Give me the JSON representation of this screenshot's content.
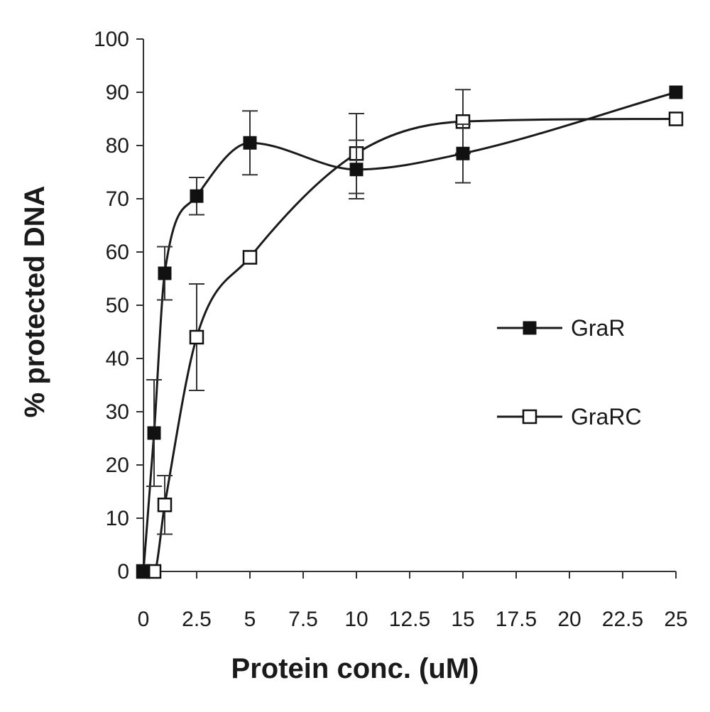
{
  "chart_data": {
    "type": "line",
    "title": "",
    "xlabel": "Protein conc. (uM)",
    "ylabel": "% protected DNA",
    "xlim": [
      0,
      25
    ],
    "ylim": [
      0,
      100
    ],
    "x_ticks": [
      0,
      2.5,
      5,
      7.5,
      10,
      12.5,
      15,
      17.5,
      20,
      22.5,
      25
    ],
    "x_tick_labels": [
      "0",
      "2.5",
      "5",
      "7.5",
      "10",
      "12.5",
      "15",
      "17.5",
      "20",
      "22.5",
      "25"
    ],
    "y_ticks": [
      0,
      10,
      20,
      30,
      40,
      50,
      60,
      70,
      80,
      90,
      100
    ],
    "y_tick_labels": [
      "0",
      "10",
      "20",
      "30",
      "40",
      "50",
      "60",
      "70",
      "80",
      "90",
      "100"
    ],
    "grid": false,
    "legend_position": "right",
    "series": [
      {
        "name": "GraR",
        "marker": "filled-square",
        "x": [
          0,
          0.5,
          1,
          2.5,
          5,
          10,
          15,
          25
        ],
        "y": [
          0,
          26,
          56,
          70.5,
          80.5,
          75.5,
          78.5,
          90
        ],
        "err": [
          0,
          10,
          5,
          3.5,
          6,
          5.5,
          5.5,
          0
        ]
      },
      {
        "name": "GraRC",
        "marker": "open-square",
        "x": [
          0,
          0.5,
          1,
          2.5,
          5,
          10,
          15,
          25
        ],
        "y": [
          0,
          0,
          12.5,
          44,
          59,
          78.5,
          84.5,
          85
        ],
        "err": [
          0,
          0,
          5.5,
          10,
          0,
          7.5,
          6,
          0
        ]
      }
    ]
  }
}
